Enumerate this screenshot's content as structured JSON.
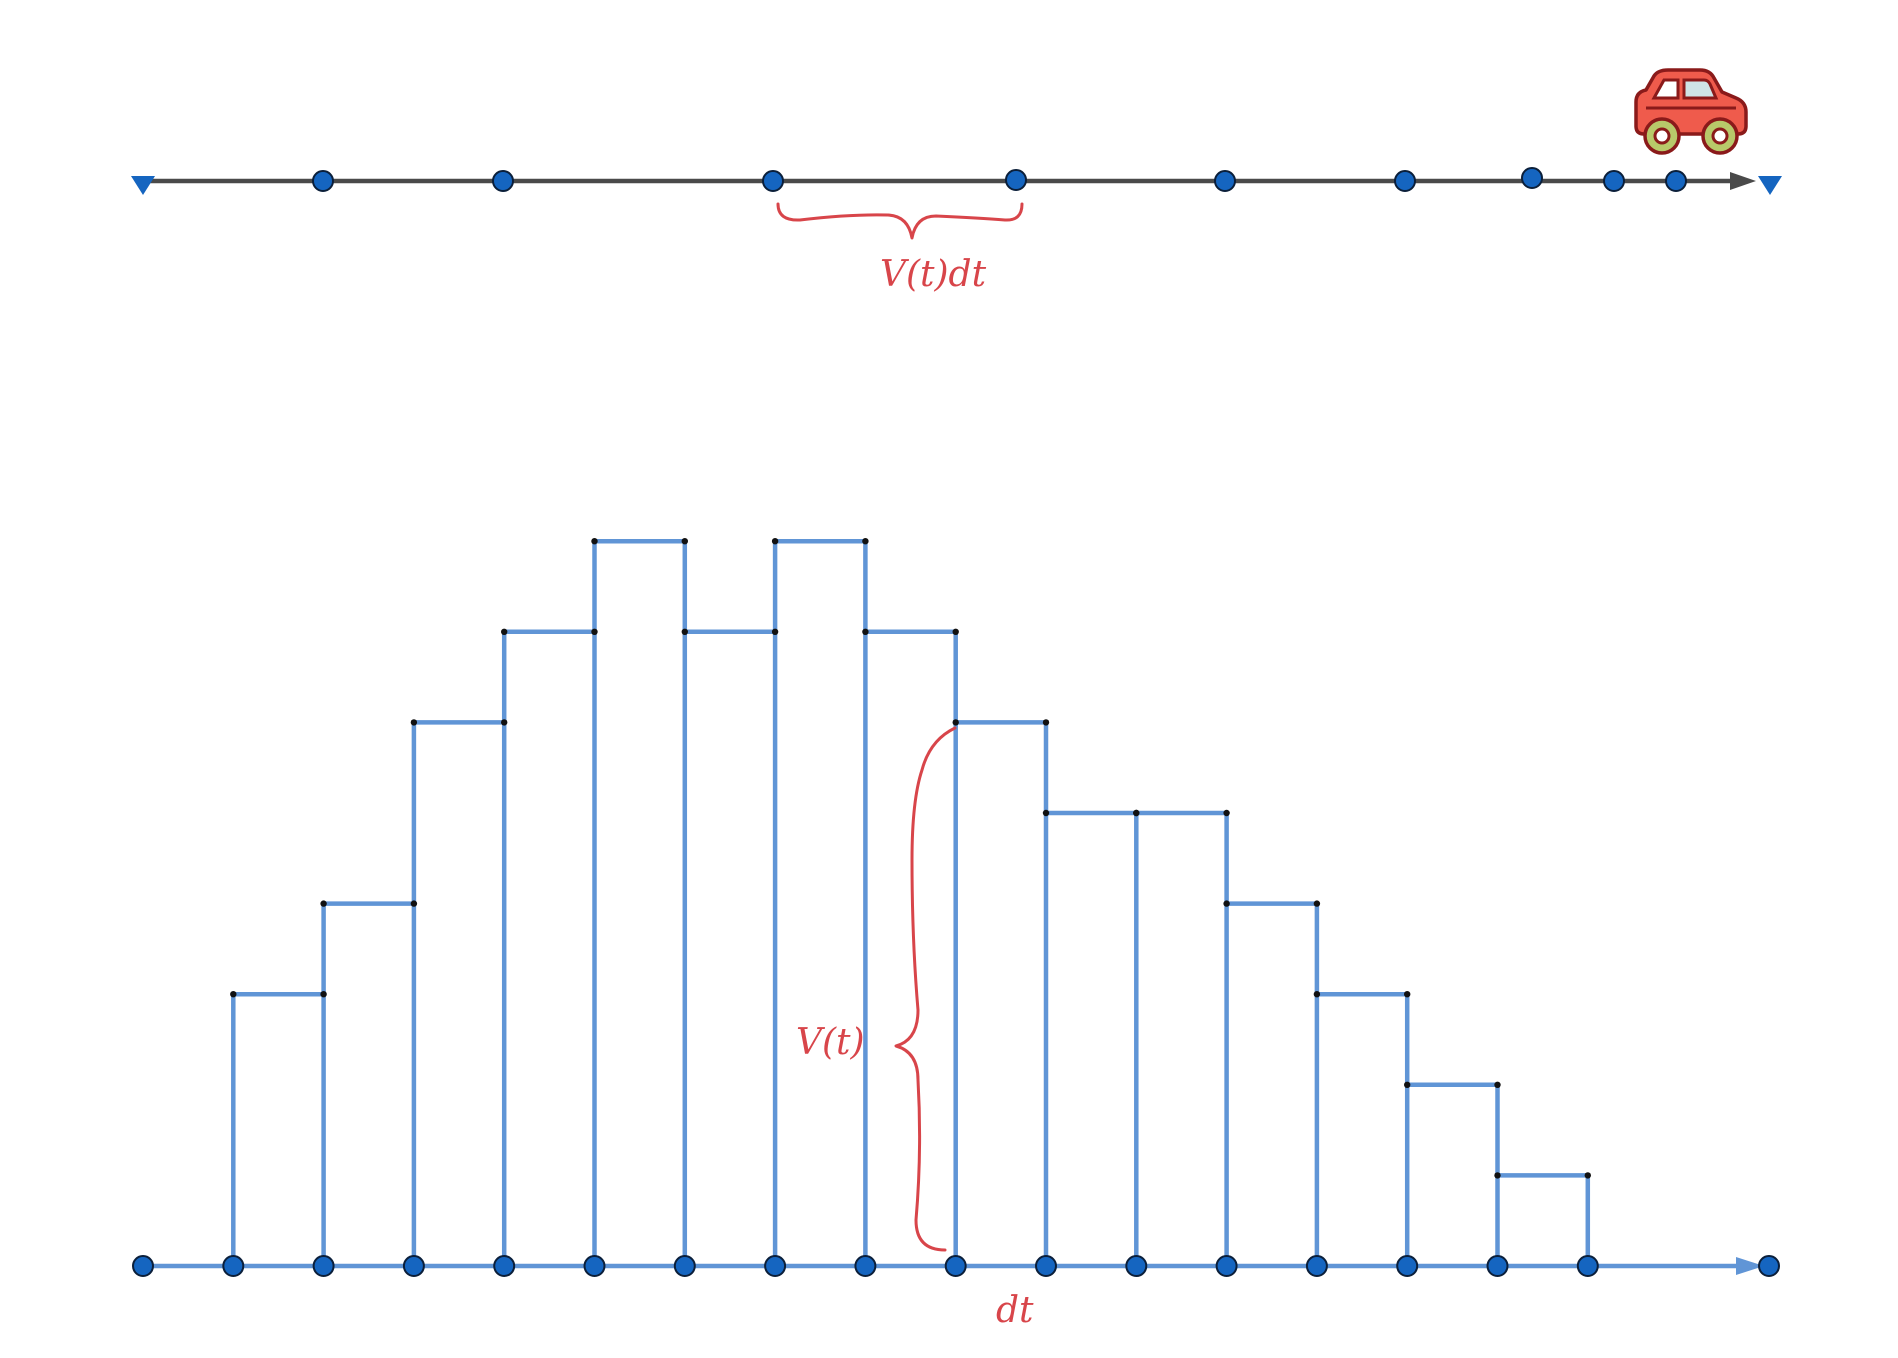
{
  "labels": {
    "top_segment": "V(t)dt",
    "bar_height": "V(t)",
    "bar_width": "dt"
  },
  "colors": {
    "bar_stroke": "#6095d6",
    "point_fill": "#1565c0",
    "annotation": "#d8454a",
    "top_axis": "#4a4a4a",
    "car_body": "#ef5b4c",
    "car_outline": "#8a1a1a",
    "car_window": "#cfe3e6",
    "car_wheel": "#b8c96a"
  },
  "icons": {
    "car": "car-icon",
    "top_axis_left_end": "triangle-down-marker",
    "top_axis_right_end": "triangle-down-marker"
  },
  "chart_data": {
    "type": "bar",
    "bar_heights_relative": [
      3,
      4,
      6,
      7,
      8,
      7,
      8,
      7,
      6,
      5,
      5,
      4,
      3,
      2,
      1
    ],
    "axis_point_count": 18,
    "top_line_point_count": 9
  }
}
